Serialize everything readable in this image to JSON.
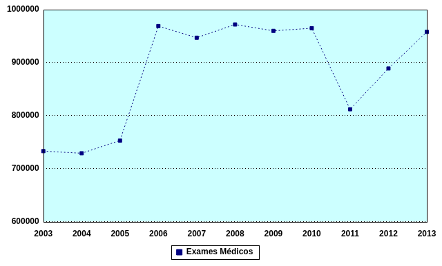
{
  "chart_data": {
    "type": "line",
    "categories": [
      "2003",
      "2004",
      "2005",
      "2006",
      "2007",
      "2008",
      "2009",
      "2010",
      "2011",
      "2012",
      "2013"
    ],
    "series": [
      {
        "name": "Exames Médicos",
        "color": "#000080",
        "values": [
          733000,
          729000,
          753000,
          969000,
          947000,
          972000,
          960000,
          965000,
          812000,
          889000,
          958000
        ]
      }
    ],
    "ylim": [
      600000,
      1000000
    ],
    "yticks": [
      600000,
      700000,
      800000,
      900000,
      1000000
    ],
    "grid": true,
    "legend": "bottom",
    "marker": "square",
    "line_style": "dotted"
  }
}
